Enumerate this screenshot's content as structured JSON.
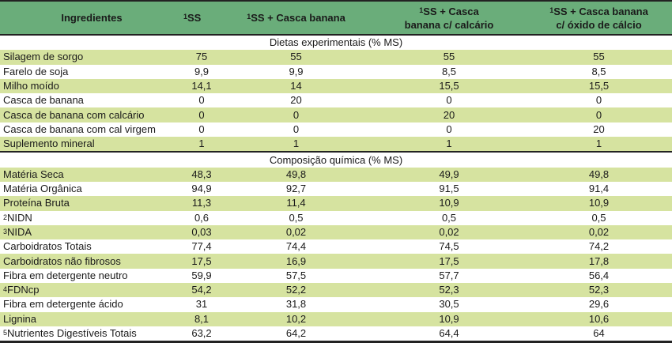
{
  "header": {
    "col0": "Ingredientes",
    "col1": {
      "sup": "1",
      "text": "SS"
    },
    "col2": {
      "sup": "1",
      "text": "SS + Casca banana"
    },
    "col3": {
      "sup": "1",
      "line1": "SS + Casca",
      "line2": "banana c/ calcário"
    },
    "col4": {
      "sup": "1",
      "line1": "SS + Casca banana",
      "line2": "c/ óxido de cálcio"
    }
  },
  "colors": {
    "header_bg": "#6aad7a",
    "stripe_bg": "#d6e3a0",
    "border": "#222222"
  },
  "sections": [
    {
      "title": "Dietas experimentais (% MS)",
      "rows": [
        {
          "sup": "",
          "label": "Silagem de sorgo",
          "values": [
            "75",
            "55",
            "55",
            "55"
          ]
        },
        {
          "sup": "",
          "label": "Farelo de soja",
          "values": [
            "9,9",
            "9,9",
            "8,5",
            "8,5"
          ]
        },
        {
          "sup": "",
          "label": "Milho moído",
          "values": [
            "14,1",
            "14",
            "15,5",
            "15,5"
          ]
        },
        {
          "sup": "",
          "label": "Casca de banana",
          "values": [
            "0",
            "20",
            "0",
            "0"
          ]
        },
        {
          "sup": "",
          "label": "Casca de banana com calcário",
          "values": [
            "0",
            "0",
            "20",
            "0"
          ]
        },
        {
          "sup": "",
          "label": "Casca de banana com cal virgem",
          "values": [
            "0",
            "0",
            "0",
            "20"
          ]
        },
        {
          "sup": "",
          "label": "Suplemento mineral",
          "values": [
            "1",
            "1",
            "1",
            "1"
          ]
        }
      ]
    },
    {
      "title": "Composição química (% MS)",
      "rows": [
        {
          "sup": "",
          "label": "Matéria Seca",
          "values": [
            "48,3",
            "49,8",
            "49,9",
            "49,8"
          ]
        },
        {
          "sup": "",
          "label": "Matéria Orgânica",
          "values": [
            "94,9",
            "92,7",
            "91,5",
            "91,4"
          ]
        },
        {
          "sup": "",
          "label": "Proteína Bruta",
          "values": [
            "11,3",
            "11,4",
            "10,9",
            "10,9"
          ]
        },
        {
          "sup": "2",
          "label": "NIDN",
          "values": [
            "0,6",
            "0,5",
            "0,5",
            "0,5"
          ]
        },
        {
          "sup": "3",
          "label": "NIDA",
          "values": [
            "0,03",
            "0,02",
            "0,02",
            "0,02"
          ]
        },
        {
          "sup": "",
          "label": "Carboidratos Totais",
          "values": [
            "77,4",
            "74,4",
            "74,5",
            "74,2"
          ]
        },
        {
          "sup": "",
          "label": "Carboidratos não fibrosos",
          "values": [
            "17,5",
            "16,9",
            "17,5",
            "17,8"
          ]
        },
        {
          "sup": "",
          "label": "Fibra em detergente neutro",
          "values": [
            "59,9",
            "57,5",
            "57,7",
            "56,4"
          ]
        },
        {
          "sup": "4",
          "label": "FDNcp",
          "values": [
            "54,2",
            "52,2",
            "52,3",
            "52,3"
          ]
        },
        {
          "sup": "",
          "label": "Fibra em detergente ácido",
          "values": [
            "31",
            "31,8",
            "30,5",
            "29,6"
          ]
        },
        {
          "sup": "",
          "label": "Lignina",
          "values": [
            "8,1",
            "10,2",
            "10,9",
            "10,6"
          ]
        },
        {
          "sup": "5",
          "label": "Nutrientes Digestíveis Totais",
          "values": [
            "63,2",
            "64,2",
            "64,4",
            "64"
          ]
        }
      ]
    }
  ]
}
